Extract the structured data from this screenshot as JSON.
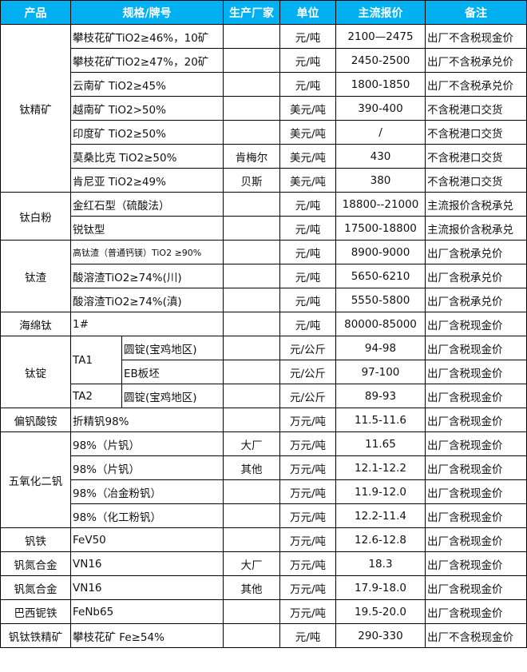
{
  "header": [
    "产品",
    "规格/牌号",
    "生产厂家",
    "单位",
    "主流报价",
    "备注"
  ],
  "colors": {
    "header_bg": "#00b0f0",
    "header_text": "#ffffff"
  },
  "groups": [
    {
      "product": "钛精矿",
      "rows": [
        {
          "spec": "攀枝花矿TiO2≥46%，10矿",
          "maker": "",
          "unit": "元/吨",
          "price": "2100—2475",
          "note": "出厂不含税现金价"
        },
        {
          "spec": "攀枝花矿TiO2≥47%，20矿",
          "maker": "",
          "unit": "元/吨",
          "price": "2450-2500",
          "note": "出厂不含税承兑价"
        },
        {
          "spec": "云南矿 TiO2≥45%",
          "maker": "",
          "unit": "元/吨",
          "price": "1800-1850",
          "note": "出厂不含税承兑价"
        },
        {
          "spec": "越南矿 TiO2>50%",
          "maker": "",
          "unit": "美元/吨",
          "price": "390-400",
          "note": "不含税港口交货"
        },
        {
          "spec": "印度矿 TiO2≥50%",
          "maker": "",
          "unit": "美元/吨",
          "price": "/",
          "note": "不含税港口交货"
        },
        {
          "spec": "莫桑比克 TiO2≥50%",
          "maker": "肯梅尔",
          "unit": "美元/吨",
          "price": "430",
          "note": "不含税港口交货"
        },
        {
          "spec": "肯尼亚 TiO2≥49%",
          "maker": "贝斯",
          "unit": "美元/吨",
          "price": "380",
          "note": "不含税港口交货"
        }
      ]
    },
    {
      "product": "钛白粉",
      "rows": [
        {
          "spec": "金红石型（硫酸法）",
          "maker": "",
          "unit": "元/吨",
          "price": "18800--21000",
          "note": "主流报价含税承兑"
        },
        {
          "spec": "锐钛型",
          "maker": "",
          "unit": "元/吨",
          "price": "17500-18800",
          "note": "主流报价含税承兑"
        }
      ]
    },
    {
      "product": "钛渣",
      "rows": [
        {
          "spec": "高钛渣（普通钙镁）TiO2 ≥90%",
          "maker": "",
          "unit": "元/吨",
          "price": "8900-9000",
          "note": "出厂含税承兑价"
        },
        {
          "spec": "酸溶渣TiO2≥74%(川)",
          "maker": "",
          "unit": "元/吨",
          "price": "5650-6210",
          "note": "出厂含税承兑价"
        },
        {
          "spec": "酸溶渣TiO2≥74%(滇)",
          "maker": "",
          "unit": "元/吨",
          "price": "5550-5800",
          "note": "出厂含税承兑价"
        }
      ]
    },
    {
      "product": "海绵钛",
      "rows": [
        {
          "spec": "1#",
          "maker": "",
          "unit": "元/吨",
          "price": "80000-85000",
          "note": "出厂含税现金价"
        }
      ]
    },
    {
      "product": "钛锭",
      "rows": [
        {
          "grade": "TA1",
          "spec": "圆锭(宝鸡地区)",
          "maker": "",
          "unit": "元/公斤",
          "price": "94-98",
          "note": "出厂含税现金价"
        },
        {
          "spec": "EB板坯",
          "maker": "",
          "unit": "元/公斤",
          "price": "97-100",
          "note": "出厂含税现金价"
        },
        {
          "grade": "TA2",
          "spec": "圆锭(宝鸡地区)",
          "maker": "",
          "unit": "元/公斤",
          "price": "89-93",
          "note": "出厂含税现金价"
        }
      ]
    },
    {
      "product": "偏钒酸铵",
      "rows": [
        {
          "spec": "折精钒98%",
          "maker": "",
          "unit": "万元/吨",
          "price": "11.5-11.6",
          "note": "出厂含税现金价"
        }
      ]
    },
    {
      "product": "五氧化二钒",
      "rows": [
        {
          "spec": "98%（片钒）",
          "maker": "大厂",
          "unit": "万元/吨",
          "price": "11.65",
          "note": "出厂含税现金价"
        },
        {
          "spec": "98%（片钒）",
          "maker": "其他",
          "unit": "万元/吨",
          "price": "12.1-12.2",
          "note": "出厂含税现金价"
        },
        {
          "spec": "98%（冶金粉钒）",
          "maker": "",
          "unit": "万元/吨",
          "price": "11.9-12.0",
          "note": "出厂含税现金价"
        },
        {
          "spec": "98%（化工粉钒）",
          "maker": "",
          "unit": "万元/吨",
          "price": "12.2-11.4",
          "note": "出厂含税现金价"
        }
      ]
    },
    {
      "product": "钒铁",
      "rows": [
        {
          "spec": "FeV50",
          "maker": "",
          "unit": "万元/吨",
          "price": "12.6-12.8",
          "note": "出厂含税现金价"
        }
      ]
    },
    {
      "product": "钒氮合金",
      "rows": [
        {
          "spec": "VN16",
          "maker": "大厂",
          "unit": "万元/吨",
          "price": "18.3",
          "note": "出厂含税现金价"
        }
      ]
    },
    {
      "product": "钒氮合金",
      "rows": [
        {
          "spec": "VN16",
          "maker": "其他",
          "unit": "万元/吨",
          "price": "17.9-18.0",
          "note": "出厂含税现金价"
        }
      ]
    },
    {
      "product": "巴西铌铁",
      "rows": [
        {
          "spec": "FeNb65",
          "maker": "",
          "unit": "万元/吨",
          "price": "19.5-20.0",
          "note": "出厂含税现金价"
        }
      ]
    },
    {
      "product": "钒钛铁精矿",
      "rows": [
        {
          "spec": "攀枝花矿 Fe≥54%",
          "maker": "",
          "unit": "元/吨",
          "price": "290-330",
          "note": "出厂不含税现金价"
        }
      ]
    }
  ]
}
